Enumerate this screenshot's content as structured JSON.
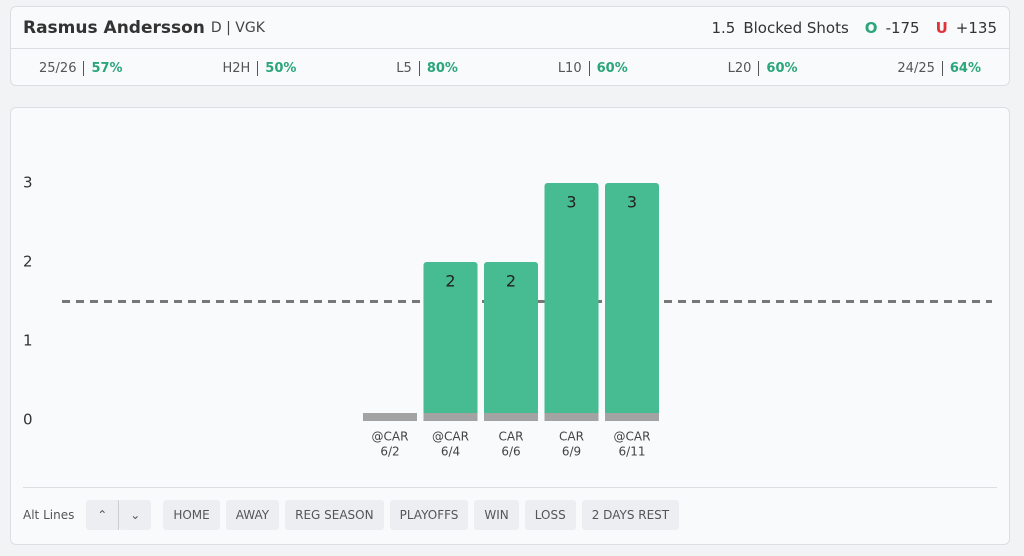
{
  "header": {
    "player": "Rasmus Andersson",
    "position_team": "D | VGK",
    "market": "Blocked Shots",
    "over": {
      "letter": "O",
      "odds": "-175"
    },
    "under": {
      "letter": "U",
      "odds": "+135"
    }
  },
  "stats": [
    {
      "label": "25/26",
      "value": "57%"
    },
    {
      "label": "H2H",
      "value": "50%"
    },
    {
      "label": "L5",
      "value": "80%"
    },
    {
      "label": "L10",
      "value": "60%"
    },
    {
      "label": "L20",
      "value": "60%"
    },
    {
      "label": "24/25",
      "value": "64%"
    }
  ],
  "chart_data": {
    "type": "bar",
    "categories": [
      "6/2",
      "6/4",
      "6/6",
      "6/9",
      "6/11"
    ],
    "opponents": [
      "@CAR",
      "@CAR",
      "CAR",
      "CAR",
      "@CAR"
    ],
    "values": [
      0,
      2,
      2,
      3,
      3
    ],
    "color": "#47bb92",
    "line": 1.5,
    "ylim": [
      0,
      3
    ],
    "yticks": [
      0,
      1,
      2,
      3
    ]
  },
  "filters": {
    "label": "Alt Lines",
    "buttons": [
      "HOME",
      "AWAY",
      "REG SEASON",
      "PLAYOFFS",
      "WIN",
      "LOSS",
      "2 DAYS REST"
    ]
  }
}
